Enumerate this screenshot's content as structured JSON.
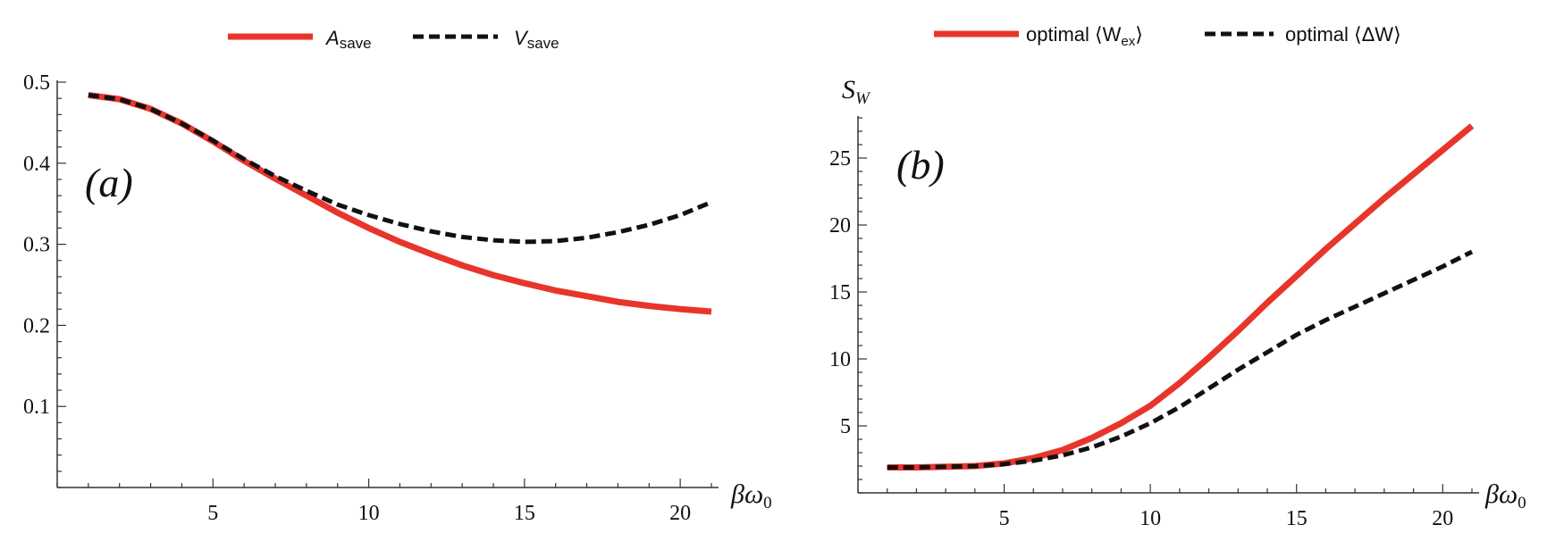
{
  "colors": {
    "red": "#e8352b",
    "black": "#111111"
  },
  "chart_data": [
    {
      "type": "line",
      "panel_label": "(a)",
      "title": "",
      "xlabel": {
        "main": "βω",
        "sub": "0"
      },
      "ylabel": {
        "main": "",
        "sub": ""
      },
      "xlim": [
        0,
        21
      ],
      "ylim": [
        0,
        0.5
      ],
      "xticks": [
        5,
        10,
        15,
        20
      ],
      "yticks": [
        0.1,
        0.2,
        0.3,
        0.4,
        0.5
      ],
      "ytick_labels": [
        "0.1",
        "0.2",
        "0.3",
        "0.4",
        "0.5"
      ],
      "legend_position": "top-center",
      "grid": false,
      "x": [
        1,
        2,
        3,
        4,
        5,
        6,
        7,
        8,
        9,
        10,
        11,
        12,
        13,
        14,
        15,
        16,
        17,
        18,
        19,
        20,
        21
      ],
      "series": [
        {
          "name": "A",
          "name_sub": "save",
          "style": "solid",
          "color": "#e8352b",
          "values": [
            0.484,
            0.479,
            0.467,
            0.449,
            0.427,
            0.403,
            0.381,
            0.36,
            0.339,
            0.32,
            0.303,
            0.288,
            0.274,
            0.262,
            0.252,
            0.243,
            0.236,
            0.229,
            0.224,
            0.22,
            0.217
          ]
        },
        {
          "name": "V",
          "name_sub": "save",
          "style": "dashed",
          "color": "#111111",
          "values": [
            0.484,
            0.479,
            0.467,
            0.449,
            0.428,
            0.405,
            0.384,
            0.366,
            0.349,
            0.336,
            0.325,
            0.316,
            0.309,
            0.305,
            0.303,
            0.304,
            0.308,
            0.315,
            0.324,
            0.336,
            0.352
          ]
        }
      ]
    },
    {
      "type": "line",
      "panel_label": "(b)",
      "title": "",
      "xlabel": {
        "main": "βω",
        "sub": "0"
      },
      "ylabel": {
        "main": "S",
        "sub": "W"
      },
      "xlim": [
        0,
        21
      ],
      "ylim": [
        0,
        28
      ],
      "xticks": [
        5,
        10,
        15,
        20
      ],
      "yticks": [
        5,
        10,
        15,
        20,
        25
      ],
      "ytick_labels": [
        "5",
        "10",
        "15",
        "20",
        "25"
      ],
      "legend_position": "top-center",
      "grid": false,
      "x": [
        1,
        2,
        3,
        4,
        5,
        6,
        7,
        8,
        9,
        10,
        11,
        12,
        13,
        14,
        15,
        16,
        17,
        18,
        19,
        20,
        21
      ],
      "series": [
        {
          "name": "optimal ⟨W",
          "name_sub": "ex",
          "name_suffix": "⟩",
          "style": "solid",
          "color": "#e8352b",
          "values": [
            1.9,
            1.9,
            1.95,
            2.0,
            2.2,
            2.6,
            3.2,
            4.1,
            5.2,
            6.5,
            8.2,
            10.1,
            12.1,
            14.2,
            16.2,
            18.2,
            20.1,
            22.0,
            23.8,
            25.6,
            27.4
          ]
        },
        {
          "name": "optimal ⟨ΔW⟩",
          "name_sub": "",
          "name_suffix": "",
          "style": "dashed",
          "color": "#111111",
          "values": [
            1.9,
            1.9,
            1.95,
            2.0,
            2.15,
            2.4,
            2.8,
            3.4,
            4.2,
            5.2,
            6.4,
            7.8,
            9.2,
            10.5,
            11.8,
            12.9,
            13.9,
            14.9,
            15.9,
            16.9,
            18.0
          ]
        }
      ]
    }
  ]
}
